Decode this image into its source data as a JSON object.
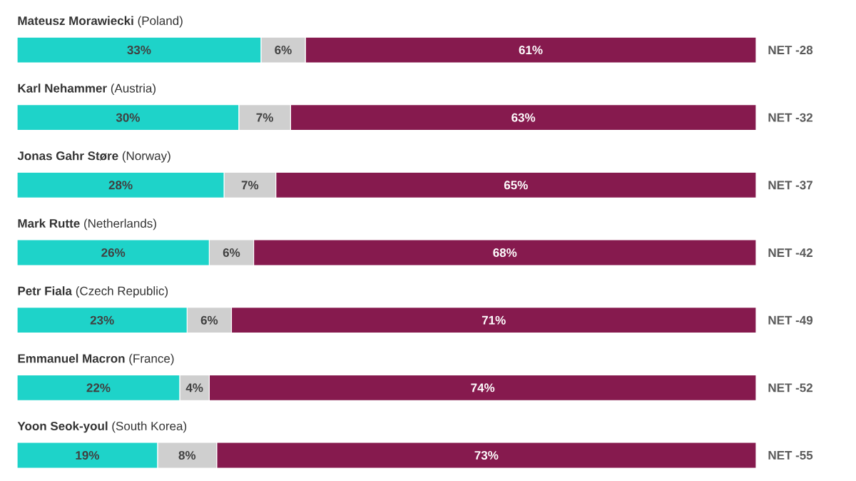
{
  "chart_data": {
    "type": "bar",
    "orientation": "horizontal",
    "stacked": true,
    "categories": [
      "**Mateusz Morawiecki** (Poland)",
      "**Karl Nehammer** (Austria)",
      "**Jonas Gahr Støre** (Norway)",
      "**Mark Rutte** (Netherlands)",
      "**Petr Fiala** (Czech Republic)",
      "**Emmanuel Macron** (France)",
      "**Yoon Seok-youl** (South Korea)"
    ],
    "series": [
      {
        "color": "#1ed3c9",
        "values": [
          33,
          30,
          28,
          26,
          23,
          22,
          19
        ],
        "value_labels": [
          "33%",
          "30%",
          "28%",
          "26%",
          "23%",
          "22%",
          "19%"
        ]
      },
      {
        "color": "#cfcfcf",
        "values": [
          6,
          7,
          7,
          6,
          6,
          4,
          8
        ],
        "value_labels": [
          "6%",
          "7%",
          "7%",
          "6%",
          "6%",
          "4%",
          "8%"
        ]
      },
      {
        "color": "#861a4e",
        "values": [
          61,
          63,
          65,
          68,
          71,
          74,
          73
        ],
        "value_labels": [
          "61%",
          "63%",
          "65%",
          "68%",
          "71%",
          "74%",
          "73%"
        ]
      }
    ],
    "annotations": [
      "NET -28",
      "NET -32",
      "NET -37",
      "NET -42",
      "NET -49",
      "NET -52",
      "NET -55"
    ]
  }
}
